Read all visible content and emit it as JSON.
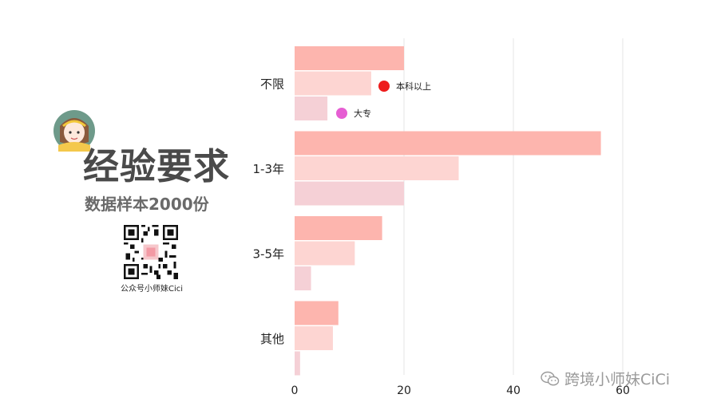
{
  "title": "经验要求",
  "subtitle": "数据样本2000份",
  "qr_caption": "公众号小师妹Cici",
  "watermark": "跨境小师妹CiCi",
  "colors": {
    "series_1": "#fdb5ae",
    "series_2": "#fdd5d2",
    "series_3": "#f5d0d6",
    "legend_1": "#ee1c1c",
    "legend_2": "#e65ed3",
    "title": "#4a4a4a",
    "grid": "#e4e4e4"
  },
  "icons": {
    "avatar": "cartoon-girl-avatar",
    "qr": "qr-code",
    "watermark": "wechat-icon"
  },
  "chart_data": {
    "type": "bar",
    "orientation": "horizontal",
    "categories": [
      "不限",
      "1-3年",
      "3-5年",
      "其他"
    ],
    "series": [
      {
        "name": "",
        "values": [
          20,
          56,
          16,
          8
        ]
      },
      {
        "name": "本科以上",
        "values": [
          14,
          30,
          11,
          7
        ]
      },
      {
        "name": "大专",
        "values": [
          6,
          20,
          3,
          1
        ]
      }
    ],
    "x_ticks": [
      0,
      20,
      40,
      60
    ],
    "xlim": [
      0,
      62
    ],
    "grid": true,
    "legend": [
      "本科以上",
      "大专"
    ],
    "legend_position": "inside-top-center"
  }
}
